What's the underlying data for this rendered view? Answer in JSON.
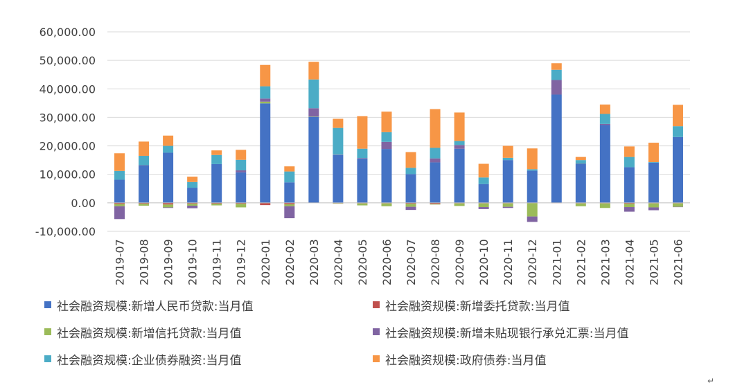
{
  "chart_data": {
    "type": "bar",
    "stacked": true,
    "ylim": [
      -10000,
      60000
    ],
    "yticks": [
      -10000,
      0,
      10000,
      20000,
      30000,
      40000,
      50000,
      60000
    ],
    "ytick_labels": [
      "-10,000.00",
      "0.00",
      "10,000.00",
      "20,000.00",
      "30,000.00",
      "40,000.00",
      "50,000.00",
      "60,000.00"
    ],
    "grid": true,
    "legend_position": "bottom",
    "categories": [
      "2019-07",
      "2019-08",
      "2019-09",
      "2019-10",
      "2019-11",
      "2019-12",
      "2020-01",
      "2020-02",
      "2020-03",
      "2020-04",
      "2020-05",
      "2020-06",
      "2020-07",
      "2020-08",
      "2020-09",
      "2020-10",
      "2020-11",
      "2020-12",
      "2021-01",
      "2021-02",
      "2021-03",
      "2021-04",
      "2021-05",
      "2021-06"
    ],
    "series": [
      {
        "name": "社会融资规模:新增人民币贷款:当月值",
        "color": "#4472C4",
        "values": [
          8100,
          13100,
          17600,
          5300,
          13600,
          10700,
          34900,
          7200,
          30200,
          16800,
          15500,
          18900,
          10100,
          14200,
          19000,
          6600,
          15000,
          11300,
          38000,
          13600,
          27300,
          12500,
          14100,
          23100
        ]
      },
      {
        "name": "社会融资规模:新增委托贷款:当月值",
        "color": "#C0504D",
        "values": [
          -400,
          -300,
          -600,
          -300,
          -300,
          -300,
          -800,
          -500,
          0,
          -200,
          -200,
          -200,
          -300,
          -400,
          -200,
          -200,
          -200,
          -100,
          -100,
          -200,
          -200,
          -300,
          -200,
          -200
        ]
      },
      {
        "name": "社会融资规模:新增信托贷款:当月值",
        "color": "#9BBB59",
        "values": [
          -800,
          -700,
          -1000,
          -700,
          -600,
          -1300,
          600,
          -700,
          100,
          -100,
          -700,
          -1000,
          -1100,
          -200,
          -900,
          -1300,
          -1200,
          -4700,
          0,
          -1000,
          -1600,
          -1200,
          -1400,
          -1200
        ]
      },
      {
        "name": "社会融资规模:新增未贴现银行承兑汇票:当月值",
        "color": "#8064A2",
        "values": [
          -4500,
          100,
          -200,
          -900,
          0,
          700,
          1100,
          -4200,
          2900,
          100,
          200,
          2500,
          -1100,
          1400,
          1300,
          -700,
          -400,
          -1900,
          5100,
          100,
          400,
          -1600,
          -1000,
          -100
        ]
      },
      {
        "name": "社会融资规模:企业债券融资:当月值",
        "color": "#4BACC6",
        "values": [
          3100,
          3300,
          2400,
          2000,
          3200,
          3700,
          4300,
          3800,
          10100,
          9400,
          3300,
          3400,
          2200,
          3700,
          1400,
          2300,
          800,
          500,
          3600,
          1300,
          3500,
          3600,
          200,
          3800
        ]
      },
      {
        "name": "社会融资规模:政府债券:当月值",
        "color": "#F79646",
        "values": [
          6200,
          5000,
          3600,
          1900,
          1600,
          3500,
          7500,
          1800,
          6200,
          3200,
          11400,
          7200,
          5500,
          13600,
          10000,
          4800,
          4200,
          7300,
          2300,
          1100,
          3300,
          3700,
          6800,
          7500
        ]
      }
    ]
  },
  "legend_order": [
    0,
    1,
    2,
    3,
    4,
    5
  ],
  "corner_mark": "↵"
}
